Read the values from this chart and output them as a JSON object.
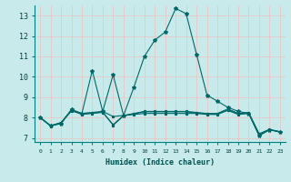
{
  "xlabel": "Humidex (Indice chaleur)",
  "background_color": "#c8eaea",
  "grid_color": "#e8c8c8",
  "line_color": "#006868",
  "xlim": [
    -0.5,
    23.5
  ],
  "ylim": [
    6.8,
    13.5
  ],
  "xtick_labels": [
    "0",
    "1",
    "2",
    "3",
    "4",
    "5",
    "6",
    "7",
    "8",
    "9",
    "10",
    "11",
    "12",
    "13",
    "14",
    "15",
    "16",
    "17",
    "18",
    "19",
    "20",
    "21",
    "22",
    "23"
  ],
  "ytick_values": [
    7,
    8,
    9,
    10,
    11,
    12,
    13
  ],
  "lines": [
    [
      8.0,
      7.6,
      7.7,
      8.4,
      8.2,
      10.3,
      8.3,
      10.1,
      8.1,
      9.5,
      11.0,
      11.8,
      12.2,
      13.35,
      13.1,
      11.1,
      9.1,
      8.8,
      8.5,
      8.3,
      8.2,
      7.1,
      7.4,
      7.3
    ],
    [
      8.0,
      7.6,
      7.7,
      8.35,
      8.15,
      8.2,
      8.25,
      7.65,
      8.1,
      8.15,
      8.2,
      8.2,
      8.2,
      8.2,
      8.2,
      8.2,
      8.15,
      8.15,
      8.35,
      8.15,
      8.2,
      7.15,
      7.4,
      7.3
    ],
    [
      8.0,
      7.6,
      7.75,
      8.35,
      8.2,
      8.25,
      8.3,
      8.05,
      8.1,
      8.2,
      8.3,
      8.3,
      8.3,
      8.3,
      8.3,
      8.25,
      8.2,
      8.2,
      8.42,
      8.2,
      8.25,
      7.2,
      7.42,
      7.3
    ],
    [
      8.0,
      7.58,
      7.75,
      8.32,
      8.2,
      8.22,
      8.28,
      7.62,
      8.08,
      8.18,
      8.28,
      8.28,
      8.28,
      8.28,
      8.28,
      8.22,
      8.18,
      8.18,
      8.38,
      8.18,
      8.22,
      7.18,
      7.4,
      7.28
    ]
  ]
}
